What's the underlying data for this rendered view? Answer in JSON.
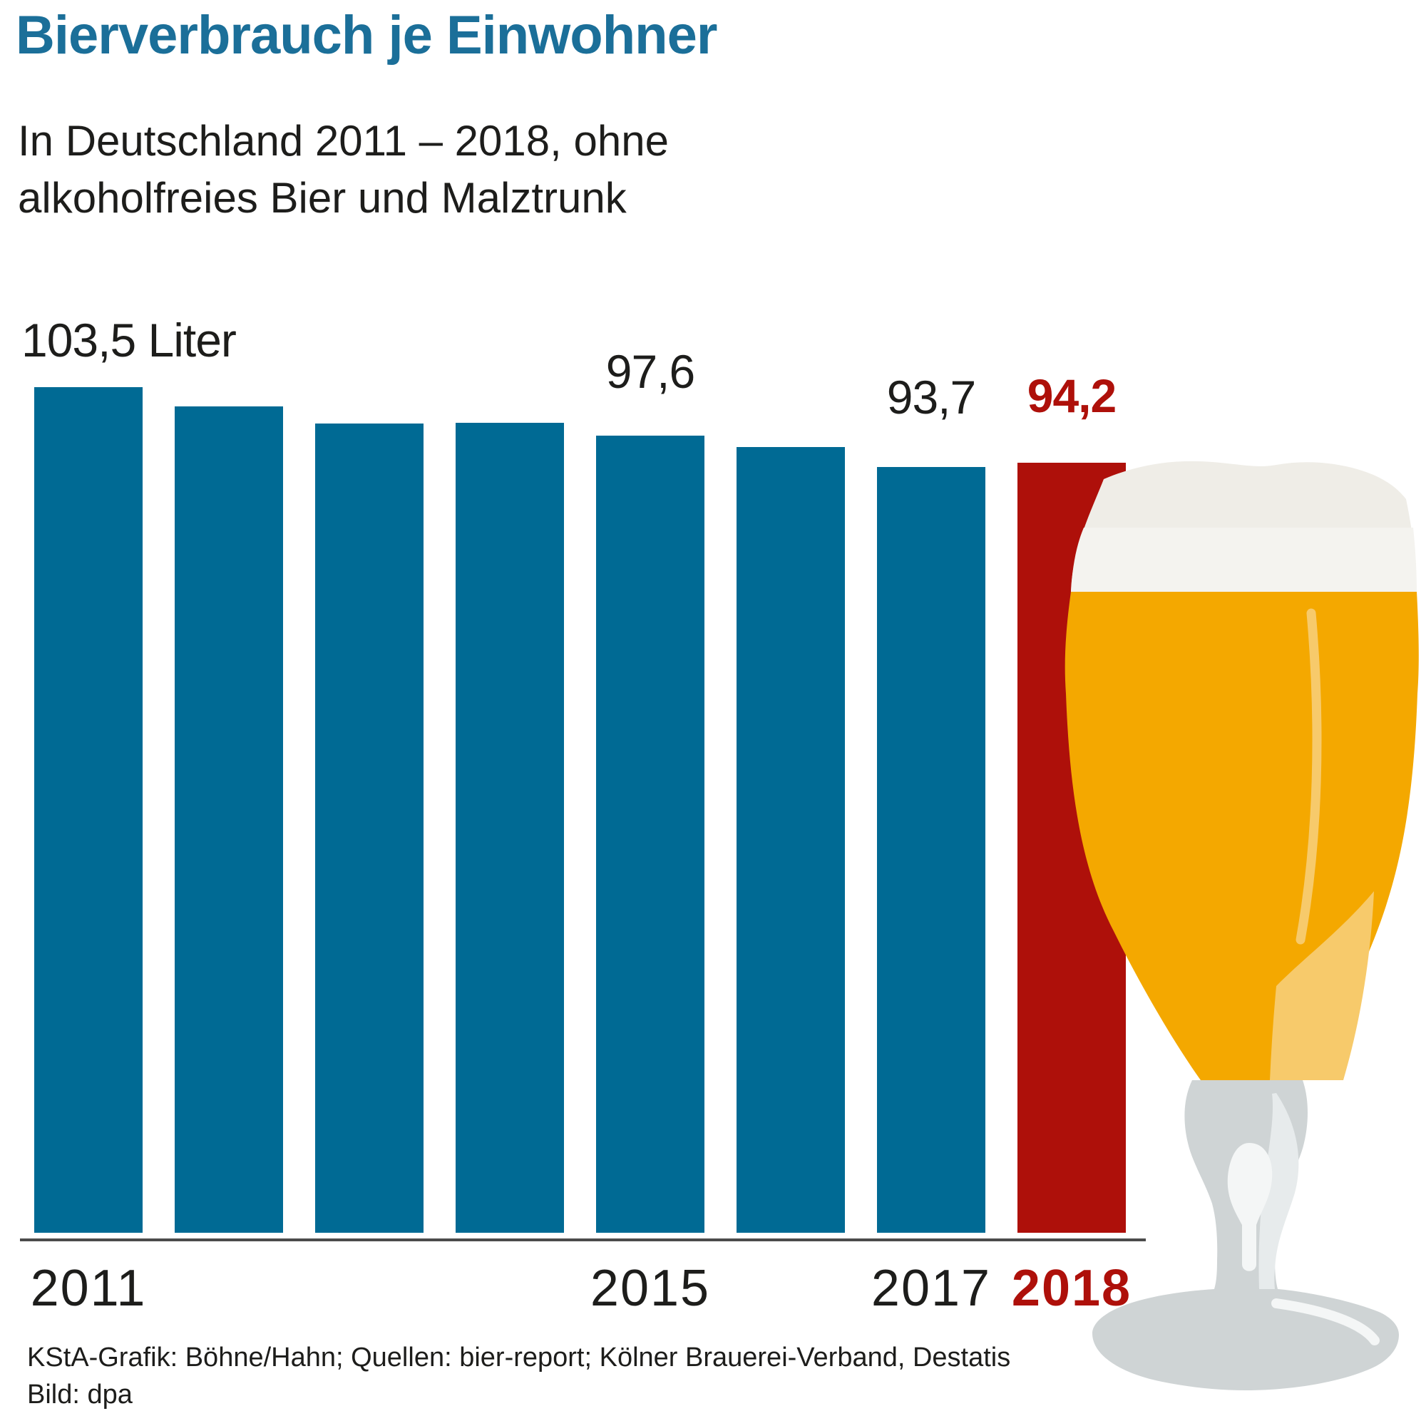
{
  "header": {
    "title": "Bierverbrauch je Einwohner",
    "subtitle_line1": "In Deutschland 2011 – 2018, ohne",
    "subtitle_line2": "alkoholfreies Bier und Malztrunk"
  },
  "chart_data": {
    "type": "bar",
    "categories": [
      "2011",
      "2012",
      "2013",
      "2014",
      "2015",
      "2016",
      "2017",
      "2018"
    ],
    "values": [
      103.5,
      101.1,
      99.0,
      99.1,
      97.6,
      96.2,
      93.7,
      94.2
    ],
    "unit": "Liter",
    "ylim": [
      0,
      110
    ],
    "grid": false,
    "legend": "none",
    "highlight_category": "2018",
    "value_labels": [
      {
        "bar_index": 0,
        "text": "103,5 Liter",
        "highlight": false
      },
      {
        "bar_index": 4,
        "text": "97,6",
        "highlight": false
      },
      {
        "bar_index": 6,
        "text": "93,7",
        "highlight": false
      },
      {
        "bar_index": 7,
        "text": "94,2",
        "highlight": true
      }
    ],
    "x_ticks": [
      {
        "bar_index": 0,
        "label": "2011",
        "highlight": false
      },
      {
        "bar_index": 4,
        "label": "2015",
        "highlight": false
      },
      {
        "bar_index": 6,
        "label": "2017",
        "highlight": false
      },
      {
        "bar_index": 7,
        "label": "2018",
        "highlight": true
      }
    ],
    "colors": {
      "bar": "#006A94",
      "highlight_bar": "#AE100A",
      "title": "#1B6F99",
      "text": "#1D1D1B",
      "axis": "#4B4B4B"
    }
  },
  "footer": {
    "credit": "KStA-Grafik: Böhne/Hahn; Quellen: bier-report; Kölner Brauerei-Verband, Destatis",
    "image_credit": "Bild: dpa"
  },
  "illustration": {
    "name": "beer-glass",
    "colors": {
      "foam": "#EFEDE7",
      "foam_bright": "#F4F3EF",
      "beer": "#F4A800",
      "beer_highlight": "#F7CA6B",
      "glass": "#CFD4D5",
      "glass_highlight": "#E7EBEC",
      "glass_streak": "#F4F6F6"
    }
  }
}
